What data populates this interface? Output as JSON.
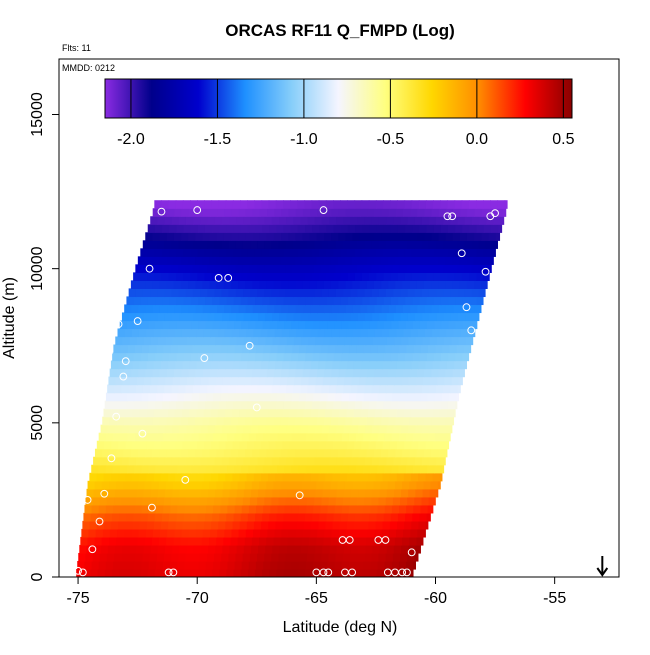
{
  "chart_data": {
    "type": "heatmap",
    "title": "ORCAS RF11 Q_FMPD (Log)",
    "flights_label": "Flts: 11",
    "date_label": "MMDD: 0212",
    "xlabel": "Latitude (deg N)",
    "ylabel": "Altitude (m)",
    "xlim": [
      -75.8,
      -52.3
    ],
    "ylim": [
      0,
      16800
    ],
    "xticks": [
      -75,
      -70,
      -65,
      -60,
      -55
    ],
    "yticks": [
      0,
      5000,
      10000,
      15000
    ],
    "colorbar": {
      "min": -2.15,
      "max": 0.55,
      "ticks": [
        -2.0,
        -1.5,
        -1.0,
        -0.5,
        0.0,
        0.5
      ],
      "colors": [
        "#8a2be2",
        "#00008b",
        "#0000cd",
        "#1e90ff",
        "#87cefa",
        "#f5f5ff",
        "#ffff80",
        "#ffd700",
        "#ff8c00",
        "#ff0000",
        "#8b0000"
      ]
    },
    "field": {
      "altitude_profile": [
        {
          "alt": 0,
          "value": 0.3
        },
        {
          "alt": 1000,
          "value": 0.25
        },
        {
          "alt": 2000,
          "value": 0.05
        },
        {
          "alt": 3000,
          "value": -0.25
        },
        {
          "alt": 4000,
          "value": -0.45
        },
        {
          "alt": 5000,
          "value": -0.6
        },
        {
          "alt": 6000,
          "value": -0.82
        },
        {
          "alt": 7000,
          "value": -1.05
        },
        {
          "alt": 8000,
          "value": -1.25
        },
        {
          "alt": 9000,
          "value": -1.45
        },
        {
          "alt": 10000,
          "value": -1.65
        },
        {
          "alt": 11000,
          "value": -1.9
        },
        {
          "alt": 12000,
          "value": -2.12
        }
      ],
      "left_edge": [
        {
          "alt": 0,
          "lat": -75.1
        },
        {
          "alt": 3000,
          "lat": -74.6
        },
        {
          "alt": 5000,
          "lat": -74.0
        },
        {
          "alt": 7500,
          "lat": -73.5
        },
        {
          "alt": 10000,
          "lat": -72.6
        },
        {
          "alt": 12000,
          "lat": -71.8
        }
      ],
      "right_edge": [
        {
          "alt": 0,
          "lat": -61.0
        },
        {
          "alt": 3000,
          "lat": -59.8
        },
        {
          "alt": 6000,
          "lat": -59.0
        },
        {
          "alt": 9000,
          "lat": -58.0
        },
        {
          "alt": 12000,
          "lat": -57.0
        }
      ]
    },
    "flight_points": [
      {
        "lat": -71.5,
        "alt": 11850
      },
      {
        "lat": -70.0,
        "alt": 11900
      },
      {
        "lat": -64.7,
        "alt": 11900
      },
      {
        "lat": -59.5,
        "alt": 11700
      },
      {
        "lat": -59.3,
        "alt": 11700
      },
      {
        "lat": -57.7,
        "alt": 11700
      },
      {
        "lat": -57.5,
        "alt": 11800
      },
      {
        "lat": -72.0,
        "alt": 10000
      },
      {
        "lat": -69.1,
        "alt": 9700
      },
      {
        "lat": -68.7,
        "alt": 9700
      },
      {
        "lat": -58.9,
        "alt": 10500
      },
      {
        "lat": -57.9,
        "alt": 9900
      },
      {
        "lat": -58.7,
        "alt": 8750
      },
      {
        "lat": -73.3,
        "alt": 8200
      },
      {
        "lat": -72.5,
        "alt": 8300
      },
      {
        "lat": -58.5,
        "alt": 8000
      },
      {
        "lat": -73.7,
        "alt": 7300
      },
      {
        "lat": -69.7,
        "alt": 7100
      },
      {
        "lat": -67.8,
        "alt": 7500
      },
      {
        "lat": -73.0,
        "alt": 7000
      },
      {
        "lat": -73.1,
        "alt": 6500
      },
      {
        "lat": -67.5,
        "alt": 5500
      },
      {
        "lat": -73.4,
        "alt": 5200
      },
      {
        "lat": -72.3,
        "alt": 4650
      },
      {
        "lat": -73.6,
        "alt": 3850
      },
      {
        "lat": -70.5,
        "alt": 3150
      },
      {
        "lat": -73.9,
        "alt": 2700
      },
      {
        "lat": -65.7,
        "alt": 2650
      },
      {
        "lat": -74.6,
        "alt": 2500
      },
      {
        "lat": -71.9,
        "alt": 2250
      },
      {
        "lat": -74.1,
        "alt": 1800
      },
      {
        "lat": -63.9,
        "alt": 1200
      },
      {
        "lat": -63.6,
        "alt": 1200
      },
      {
        "lat": -62.4,
        "alt": 1200
      },
      {
        "lat": -62.1,
        "alt": 1200
      },
      {
        "lat": -74.4,
        "alt": 900
      },
      {
        "lat": -61.0,
        "alt": 800
      },
      {
        "lat": -75.0,
        "alt": 200
      },
      {
        "lat": -74.8,
        "alt": 150
      },
      {
        "lat": -71.2,
        "alt": 150
      },
      {
        "lat": -71.0,
        "alt": 150
      },
      {
        "lat": -65.0,
        "alt": 150
      },
      {
        "lat": -64.7,
        "alt": 150
      },
      {
        "lat": -64.5,
        "alt": 150
      },
      {
        "lat": -63.8,
        "alt": 150
      },
      {
        "lat": -63.5,
        "alt": 150
      },
      {
        "lat": -62.0,
        "alt": 150
      },
      {
        "lat": -61.7,
        "alt": 150
      },
      {
        "lat": -61.4,
        "alt": 150
      },
      {
        "lat": -61.2,
        "alt": 150
      }
    ],
    "arrow_marker": {
      "lat": -53.0
    }
  }
}
